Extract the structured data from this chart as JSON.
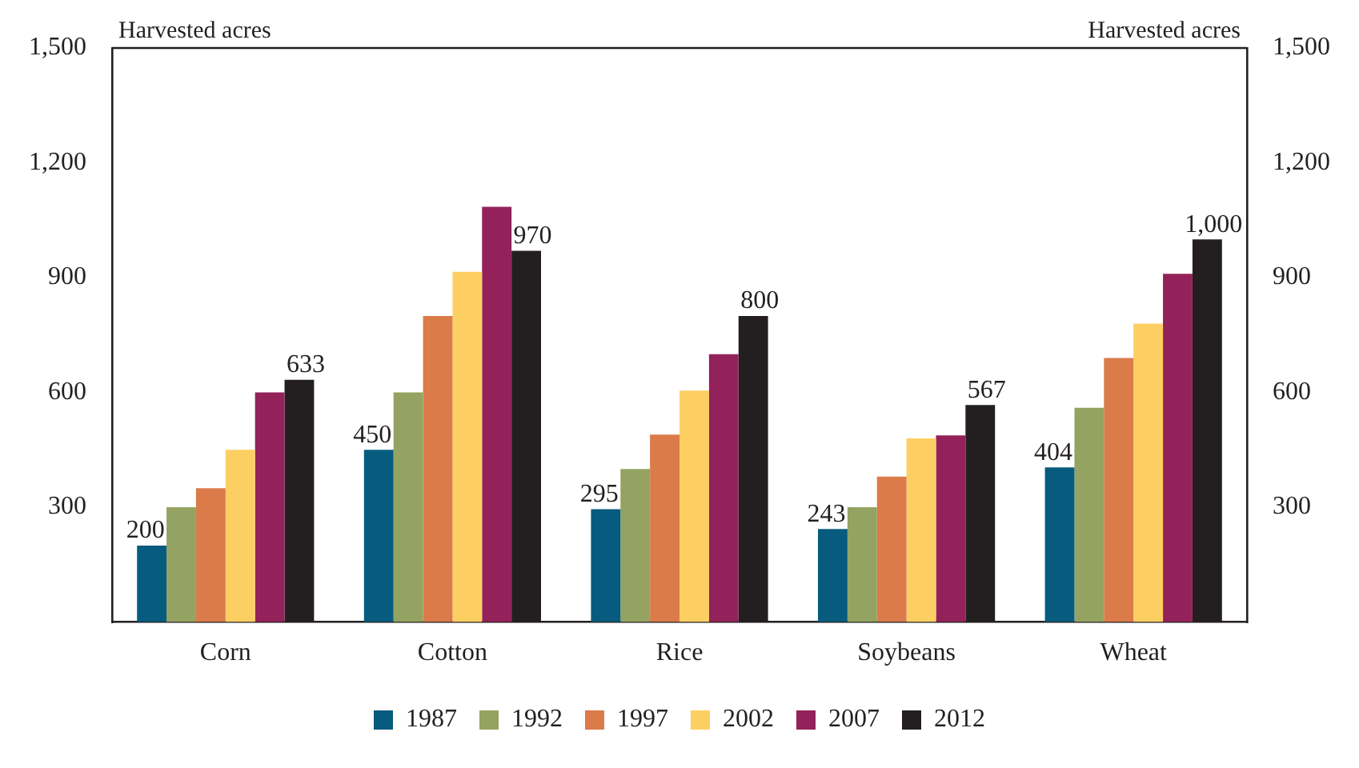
{
  "chart_data": {
    "type": "bar",
    "ylabel": "Harvested acres",
    "y2label": "Harvested acres",
    "categories": [
      "Corn",
      "Cotton",
      "Rice",
      "Soybeans",
      "Wheat"
    ],
    "series": [
      {
        "name": "1987",
        "color": "#075b7e",
        "values": [
          200,
          450,
          295,
          243,
          404
        ],
        "value_labels": [
          "200",
          "450",
          "295",
          "243",
          "404"
        ]
      },
      {
        "name": "1992",
        "color": "#94a361",
        "values": [
          300,
          600,
          400,
          300,
          560
        ],
        "value_labels": [
          null,
          null,
          null,
          null,
          null
        ]
      },
      {
        "name": "1997",
        "color": "#db7b4a",
        "values": [
          350,
          800,
          490,
          380,
          690
        ],
        "value_labels": [
          null,
          null,
          null,
          null,
          null
        ]
      },
      {
        "name": "2002",
        "color": "#fdcf63",
        "values": [
          450,
          915,
          605,
          480,
          780
        ],
        "value_labels": [
          null,
          null,
          null,
          null,
          null
        ]
      },
      {
        "name": "2007",
        "color": "#93225a",
        "values": [
          600,
          1085,
          700,
          488,
          910
        ],
        "value_labels": [
          null,
          null,
          null,
          null,
          null
        ]
      },
      {
        "name": "2012",
        "color": "#231f20",
        "values": [
          633,
          970,
          800,
          567,
          1000
        ],
        "value_labels": [
          "633",
          "970",
          "800",
          "567",
          "1,000"
        ]
      }
    ],
    "ylim": [
      0,
      1500
    ],
    "yticks": [
      {
        "value": 0,
        "label": null
      },
      300,
      600,
      900,
      {
        "value": 1200,
        "label": "1,200"
      },
      {
        "value": 1500,
        "label": "1,500"
      }
    ],
    "y2lim": [
      0,
      1500
    ],
    "y2ticks": [
      {
        "value": 0,
        "label": null
      },
      300,
      600,
      900,
      {
        "value": 1200,
        "label": "1,200"
      },
      {
        "value": 1500,
        "label": "1,500"
      }
    ],
    "grid": false,
    "legend": "bottom"
  }
}
